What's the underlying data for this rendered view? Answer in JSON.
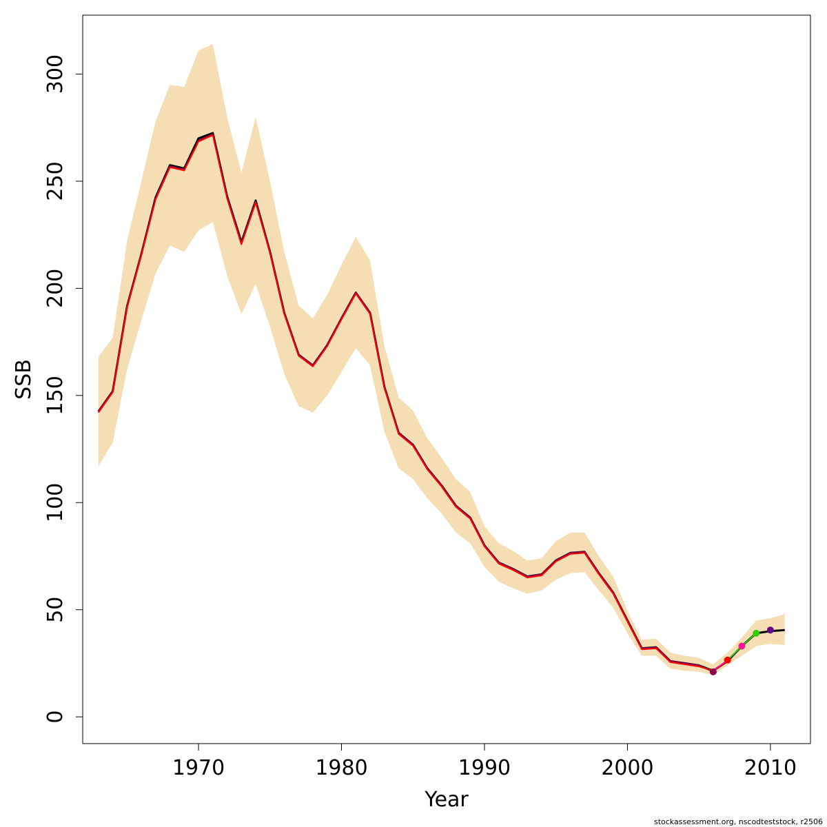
{
  "chart_data": {
    "type": "line",
    "title": "",
    "xlabel": "Year",
    "ylabel": "SSB",
    "xlim": [
      1961.9,
      2012.8
    ],
    "ylim": [
      -12.5,
      327.5
    ],
    "x_ticks": [
      1970,
      1980,
      1990,
      2000,
      2010
    ],
    "y_ticks": [
      0,
      50,
      100,
      150,
      200,
      250,
      300
    ],
    "grid": false,
    "legend": "none",
    "band": {
      "x": [
        1963,
        1964,
        1965,
        1966,
        1967,
        1968,
        1969,
        1970,
        1971,
        1972,
        1973,
        1974,
        1975,
        1976,
        1977,
        1978,
        1979,
        1980,
        1981,
        1982,
        1983,
        1984,
        1985,
        1986,
        1987,
        1988,
        1989,
        1990,
        1991,
        1992,
        1993,
        1994,
        1995,
        1996,
        1997,
        1998,
        1999,
        2000,
        2001,
        2002,
        2003,
        2004,
        2005,
        2006,
        2007,
        2008,
        2009,
        2010,
        2011
      ],
      "lower": [
        117,
        128,
        162,
        185,
        207,
        220,
        217,
        227,
        231,
        206,
        188,
        202,
        182,
        160,
        145,
        142,
        150,
        161,
        172,
        164,
        133,
        116,
        111,
        102,
        95,
        86,
        81,
        70,
        63,
        60,
        57.5,
        59,
        64,
        67,
        67.5,
        59,
        51,
        39,
        28.5,
        28.5,
        22.5,
        21.5,
        21,
        19.5,
        24,
        28.5,
        33,
        34,
        33.5
      ],
      "upper": [
        168,
        177,
        222,
        250,
        278,
        295,
        294,
        311,
        314,
        280,
        254,
        280,
        250,
        217,
        192,
        186,
        197,
        211,
        224,
        213,
        173,
        149,
        143,
        130,
        121,
        111,
        105,
        89,
        81,
        77.5,
        73,
        74,
        82,
        86,
        86,
        75,
        65.5,
        49.5,
        36,
        36.5,
        30,
        28.5,
        27.5,
        24.5,
        30,
        37,
        45,
        46,
        48
      ]
    },
    "series": [
      {
        "color": "#000000",
        "x": [
          1963,
          1964,
          1965,
          1966,
          1967,
          1968,
          1969,
          1970,
          1971,
          1972,
          1973,
          1974,
          1975,
          1976,
          1977,
          1978,
          1979,
          1980,
          1981,
          1982,
          1983,
          1984,
          1985,
          1986,
          1987,
          1988,
          1989,
          1990,
          1991,
          1992,
          1993,
          1994,
          1995,
          1996,
          1997,
          1998,
          1999,
          2000,
          2001,
          2002,
          2003,
          2004,
          2005,
          2006,
          2007,
          2008,
          2009,
          2010,
          2011
        ],
        "values": [
          142.5,
          152,
          191.5,
          216,
          242.5,
          257.5,
          256,
          270,
          272.5,
          243,
          221.5,
          241,
          217,
          188.5,
          169,
          164,
          173.5,
          186,
          198,
          188.5,
          154,
          132.5,
          127,
          116,
          108,
          98.5,
          93,
          80,
          72,
          69,
          65.5,
          66.5,
          73,
          76.5,
          77,
          67,
          58,
          45,
          32,
          32.5,
          26,
          25,
          24,
          21.5,
          26,
          33,
          39,
          40,
          40.5
        ]
      },
      {
        "color": "#8B0050",
        "x": [
          1963,
          1964,
          1965,
          1966,
          1967,
          1968,
          1969,
          1970,
          1971,
          1972,
          1973,
          1974,
          1975,
          1976,
          1977,
          1978,
          1979,
          1980,
          1981,
          1982,
          1983,
          1984,
          1985,
          1986,
          1987,
          1988,
          1989,
          1990,
          1991,
          1992,
          1993,
          1994,
          1995,
          1996,
          1997,
          1998,
          1999,
          2000,
          2001,
          2002,
          2003,
          2004,
          2005,
          2006
        ],
        "values": [
          142.5,
          152,
          191.5,
          216,
          242,
          257,
          255.5,
          269,
          272,
          242.5,
          221,
          240.5,
          217,
          188.5,
          169,
          164,
          173.5,
          186,
          198,
          188.5,
          154,
          132.5,
          127,
          116,
          108,
          98.5,
          93,
          80,
          72,
          69,
          65.5,
          66.5,
          73,
          76.5,
          77,
          67,
          58,
          45,
          32,
          32.5,
          26,
          25,
          24,
          21
        ]
      },
      {
        "color": "#ff0000",
        "x": [
          1963,
          1964,
          1965,
          1966,
          1967,
          1968,
          1969,
          1970,
          1971,
          1972,
          1973,
          1974,
          1975,
          1976,
          1977,
          1978,
          1979,
          1980,
          1981,
          1982,
          1983,
          1984,
          1985,
          1986,
          1987,
          1988,
          1989,
          1990,
          1991,
          1992,
          1993,
          1994,
          1995,
          1996,
          1997,
          1998,
          1999,
          2000,
          2001,
          2002,
          2003,
          2004,
          2005,
          2006,
          2007
        ],
        "values": [
          142,
          151.5,
          191,
          215.5,
          241.5,
          256.5,
          255,
          268.5,
          271.5,
          242,
          220.5,
          240,
          216.5,
          188,
          168.5,
          163.5,
          173,
          185.5,
          197.5,
          188,
          153.5,
          132,
          126.5,
          115.5,
          107.5,
          98,
          92.5,
          79.5,
          71.5,
          68.5,
          65,
          66,
          72.5,
          76,
          76.5,
          66.5,
          57.5,
          44.5,
          31.5,
          32,
          25.5,
          24.5,
          23.5,
          21.5,
          26
        ]
      },
      {
        "color": "#ff1493",
        "x": [
          2006,
          2007,
          2008
        ],
        "values": [
          21.5,
          26.5,
          33
        ]
      },
      {
        "color": "#33cc00",
        "x": [
          2007,
          2008,
          2009
        ],
        "values": [
          26.5,
          33,
          39
        ]
      }
    ],
    "points": [
      {
        "x": 2006,
        "y": 21,
        "color": "#8B0050"
      },
      {
        "x": 2007,
        "y": 26.5,
        "color": "#ff0000"
      },
      {
        "x": 2008,
        "y": 33,
        "color": "#ff1493"
      },
      {
        "x": 2009,
        "y": 39,
        "color": "#33cc00"
      },
      {
        "x": 2010,
        "y": 40.5,
        "color": "#6a008a"
      }
    ],
    "band_color": "#f5deb3",
    "caption": "stockassessment.org, nscodteststock, r2506"
  }
}
